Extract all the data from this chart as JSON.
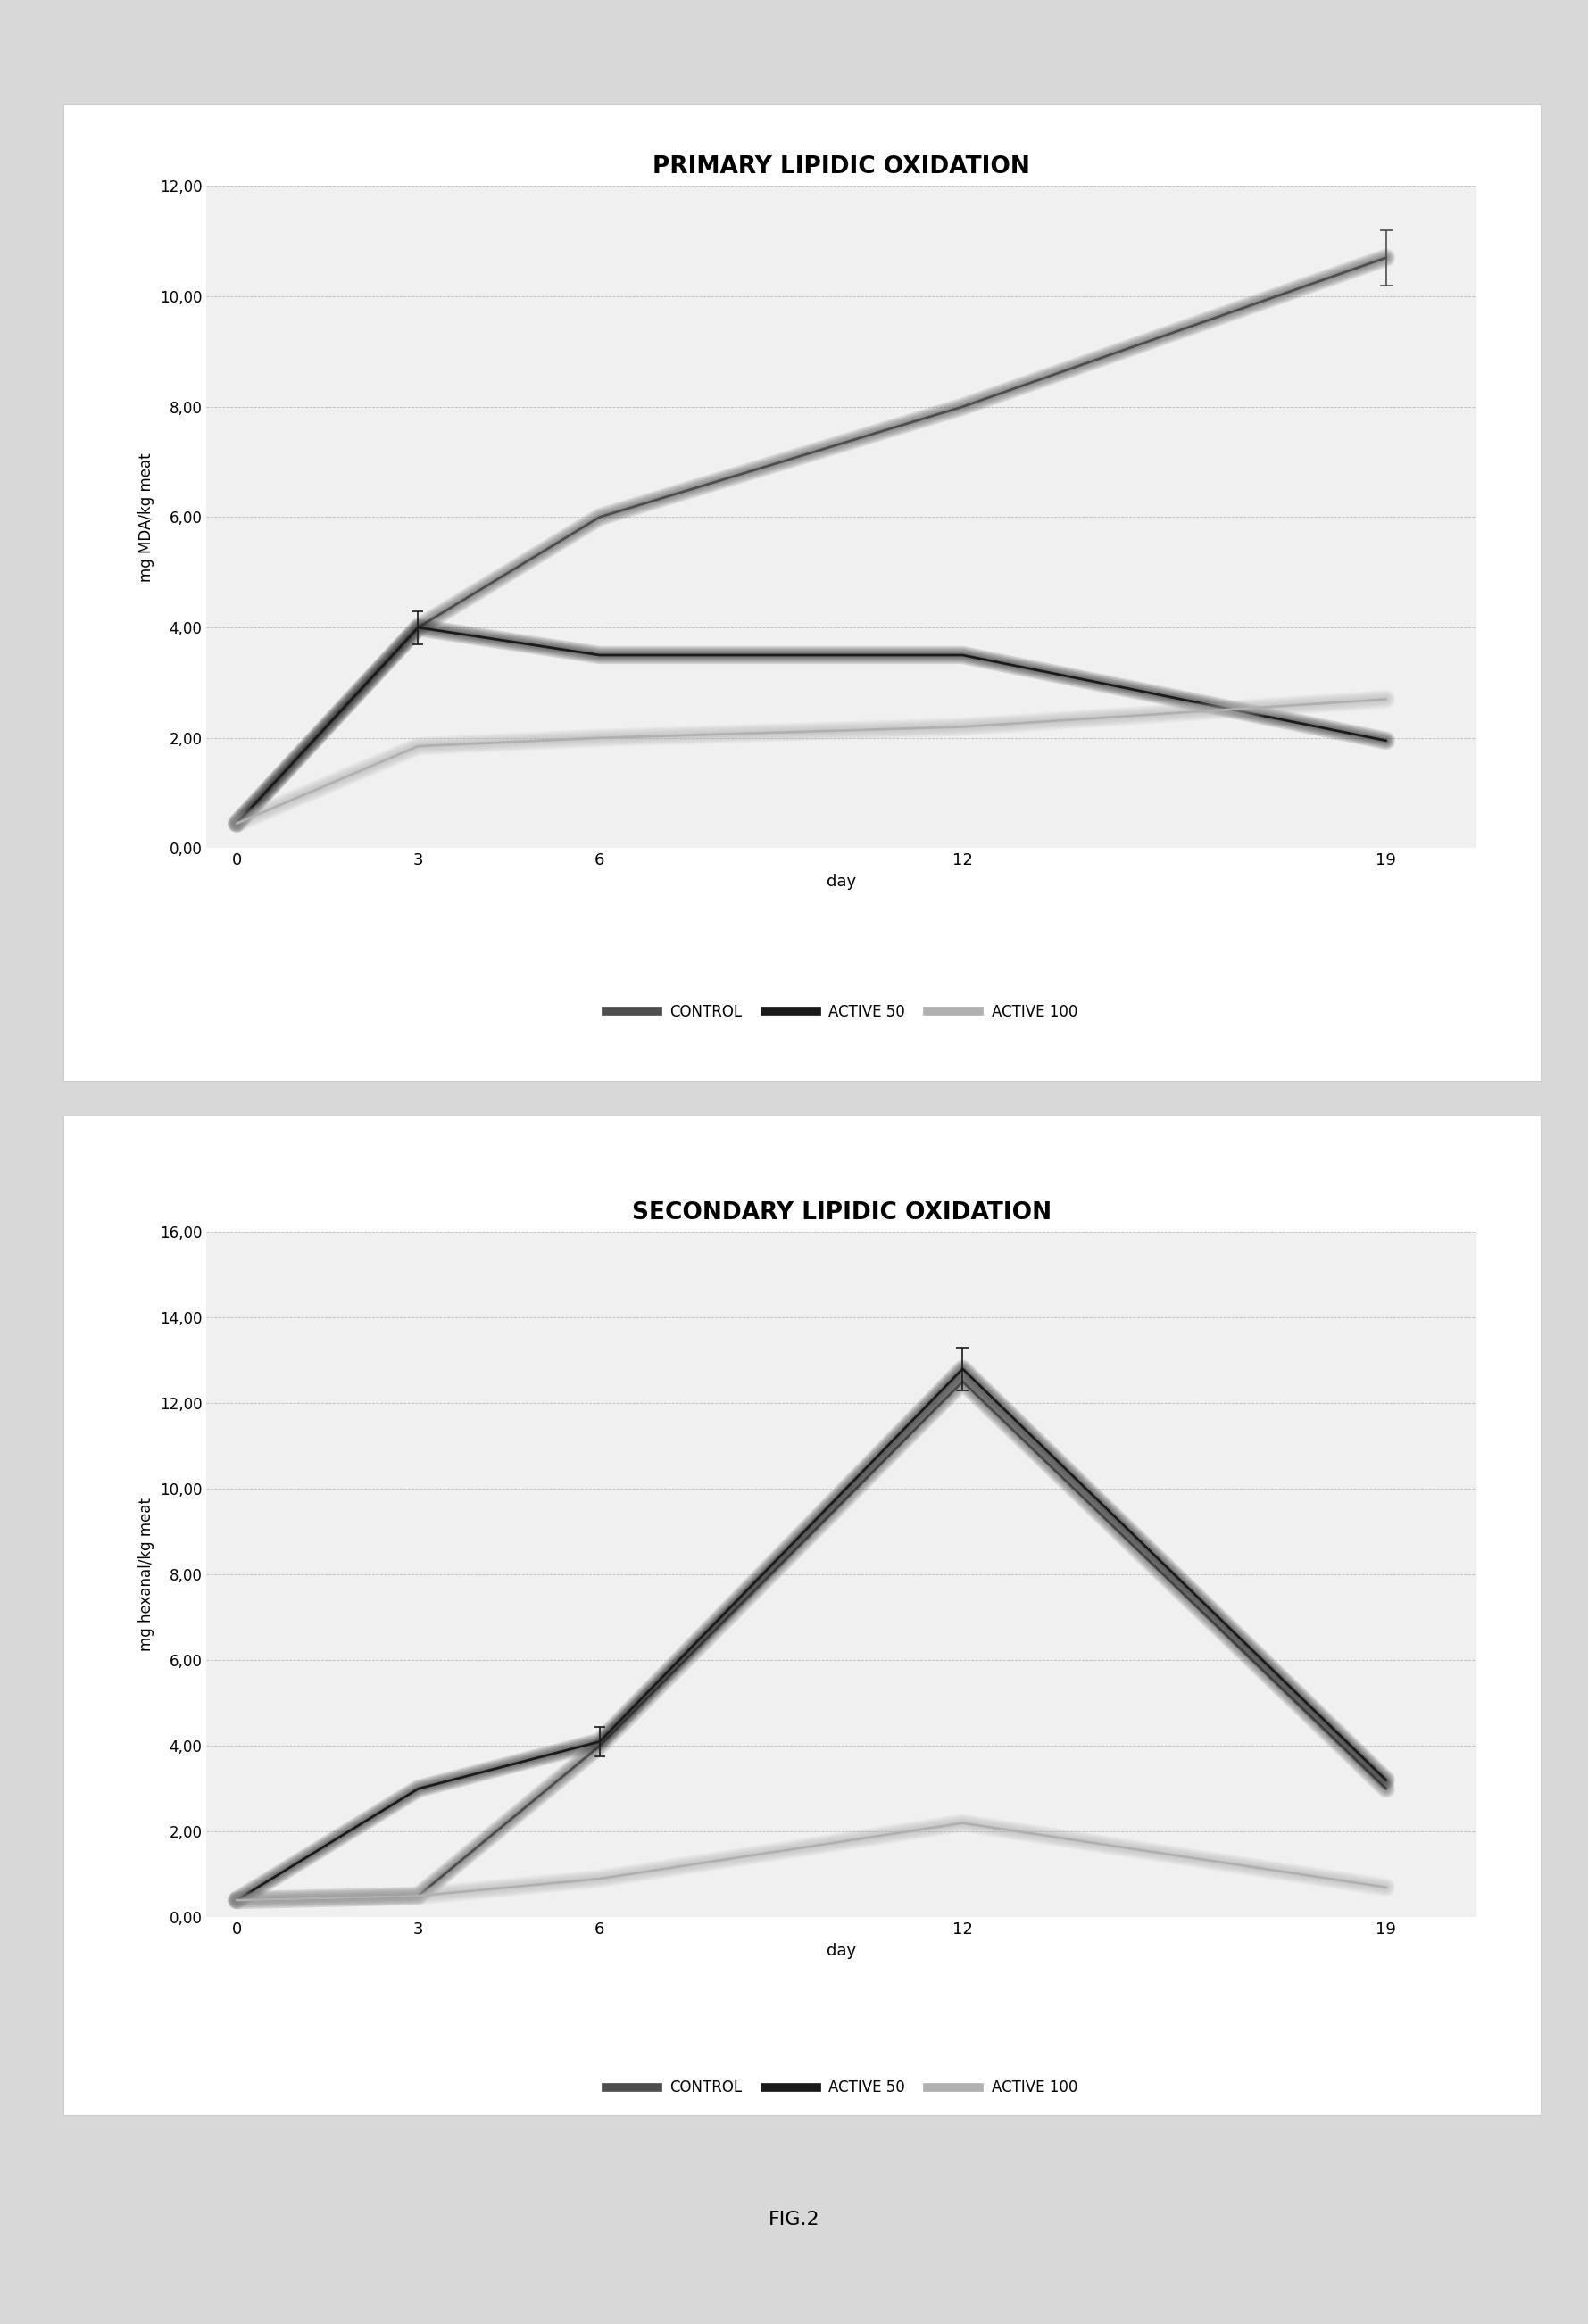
{
  "primary": {
    "title": "PRIMARY LIPIDIC OXIDATION",
    "xlabel": "day",
    "ylabel": "mg MDA/kg meat",
    "x": [
      0,
      3,
      6,
      12,
      19
    ],
    "control": [
      0.45,
      4.0,
      6.0,
      8.0,
      10.7
    ],
    "active50": [
      0.45,
      4.0,
      3.5,
      3.5,
      1.95
    ],
    "active100": [
      0.45,
      1.85,
      2.0,
      2.2,
      2.7
    ],
    "control_err_day19": 0.5,
    "active50_err_day3": 0.3,
    "ylim": [
      0,
      12
    ],
    "yticks": [
      0.0,
      2.0,
      4.0,
      6.0,
      8.0,
      10.0,
      12.0
    ],
    "ytick_labels": [
      "0,00",
      "2,00",
      "4,00",
      "6,00",
      "8,00",
      "10,00",
      "12,00"
    ]
  },
  "secondary": {
    "title": "SECONDARY LIPIDIC OXIDATION",
    "xlabel": "day",
    "ylabel": "mg hexanal/kg meat",
    "x": [
      0,
      3,
      6,
      12,
      19
    ],
    "control": [
      0.4,
      0.5,
      4.0,
      12.5,
      3.0
    ],
    "active50": [
      0.4,
      3.0,
      4.1,
      12.8,
      3.2
    ],
    "active100": [
      0.4,
      0.5,
      0.9,
      2.2,
      0.7
    ],
    "active50_err_day12": 0.5,
    "active50_err_day6": 0.35,
    "ylim": [
      0,
      16
    ],
    "yticks": [
      0.0,
      2.0,
      4.0,
      6.0,
      8.0,
      10.0,
      12.0,
      14.0,
      16.0
    ],
    "ytick_labels": [
      "0,00",
      "2,00",
      "4,00",
      "6,00",
      "8,00",
      "10,00",
      "12,00",
      "14,00",
      "16,00"
    ]
  },
  "colors": {
    "control": "#4d4d4d",
    "active50": "#1a1a1a",
    "active100": "#b0b0b0"
  },
  "legend_labels": [
    "CONTROL",
    "ACTIVE 50",
    "ACTIVE 100"
  ],
  "fig_caption": "FIG.2",
  "background_color": "#d8d8d8",
  "panel_bg": "#ffffff",
  "panel_border": "#cccccc"
}
